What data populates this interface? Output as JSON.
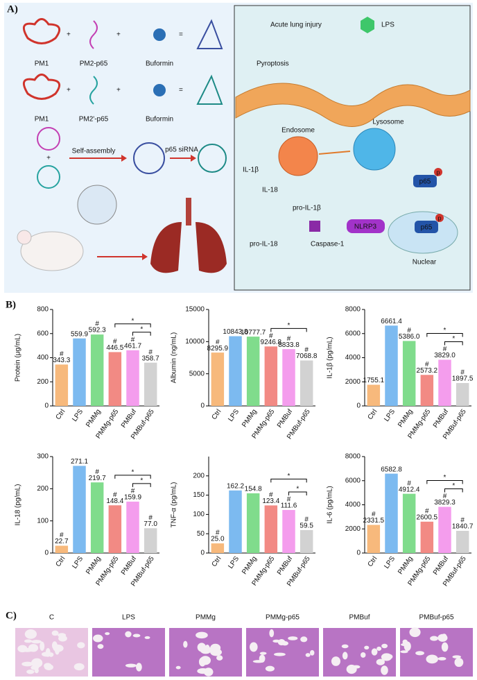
{
  "panel_a": {
    "label": "A)",
    "row1": [
      "PM1",
      "PM2-p65",
      "Buformin"
    ],
    "row2": [
      "PM1",
      "PM2'-p65",
      "Buformin"
    ],
    "assembly": [
      "Self-assembly",
      "p65 siRNA"
    ],
    "pathway": {
      "acute_lung_injury": "Acute lung injury",
      "lps": "LPS",
      "pyroptosis": "Pyroptosis",
      "endosome": "Endosome",
      "lysosome": "Lysosome",
      "il1b": "IL-1β",
      "il18": "IL-18",
      "pro_il1b": "pro-IL-1β",
      "pro_il18": "pro-IL-18",
      "caspase": "Caspase-1",
      "nlrp3": "NLRP3",
      "p65": [
        "p65",
        "p65"
      ],
      "p": [
        "p",
        "p"
      ],
      "nuclear": "Nuclear"
    }
  },
  "panel_b": {
    "label": "B)"
  },
  "chart_data": [
    {
      "type": "bar",
      "ylabel": "Protein (μg/mL)",
      "categories": [
        "Ctrl",
        "LPS",
        "PMMg",
        "PMMg-p65",
        "PMBuf",
        "PMBuf-p65"
      ],
      "values": [
        343.3,
        559.9,
        592.3,
        446.5,
        461.7,
        358.7
      ],
      "value_labels": [
        "343.3",
        "559.9",
        "592.3",
        "446.5",
        "461.7",
        "358.7"
      ],
      "markers": [
        "#",
        null,
        "#",
        "#",
        "#",
        "#"
      ],
      "significance": [
        "*",
        "*"
      ],
      "colors": [
        "#f7b97c",
        "#7cbaf0",
        "#80dc8c",
        "#f28a84",
        "#f49ded",
        "#d2d2d2"
      ],
      "ylim": [
        0,
        800
      ],
      "yticks": [
        0,
        200,
        400,
        600,
        800
      ]
    },
    {
      "type": "bar",
      "ylabel": "Albumin (ng/mL)",
      "categories": [
        "Ctrl",
        "LPS",
        "PMMg",
        "PMMg-p65",
        "PMBuf",
        "PMBuf-p65"
      ],
      "values": [
        8295.9,
        10843.8,
        10777.7,
        9246.8,
        8833.8,
        7068.8
      ],
      "value_labels": [
        "8295.9",
        "10843.8",
        "10777.7",
        "9246.8",
        "8833.8",
        "7068.8"
      ],
      "markers": [
        "#",
        null,
        null,
        "#",
        "#",
        "#"
      ],
      "significance": [
        "*"
      ],
      "colors": [
        "#f7b97c",
        "#7cbaf0",
        "#80dc8c",
        "#f28a84",
        "#f49ded",
        "#d2d2d2"
      ],
      "ylim": [
        0,
        15000
      ],
      "yticks": [
        0,
        5000,
        10000,
        15000
      ]
    },
    {
      "type": "bar",
      "ylabel": "IL-1β (pg/mL)",
      "categories": [
        "Ctrl",
        "LPS",
        "PMMg",
        "PMMg-p65",
        "PMBuf",
        "PMBuf-p65"
      ],
      "values": [
        1755.1,
        6661.4,
        5386.0,
        2573.2,
        3829.0,
        1897.5
      ],
      "value_labels": [
        "1755.1",
        "6661.4",
        "5386.0",
        "2573.2",
        "3829.0",
        "1897.5"
      ],
      "markers": [
        null,
        null,
        "#",
        "#",
        "#",
        "#"
      ],
      "significance": [
        "*",
        "*"
      ],
      "colors": [
        "#f7b97c",
        "#7cbaf0",
        "#80dc8c",
        "#f28a84",
        "#f49ded",
        "#d2d2d2"
      ],
      "ylim": [
        0,
        8000
      ],
      "yticks": [
        0,
        2000,
        4000,
        6000,
        8000
      ]
    },
    {
      "type": "bar",
      "ylabel": "IL-18 (pg/mL)",
      "categories": [
        "Ctrl",
        "LPS",
        "PMMg",
        "PMMg-p65",
        "PMBuf",
        "PMBuf-p65"
      ],
      "values": [
        22.7,
        271.1,
        219.7,
        148.4,
        159.9,
        77.0
      ],
      "value_labels": [
        "22.7",
        "271.1",
        "219.7",
        "148.4",
        "159.9",
        "77.0"
      ],
      "markers": [
        "#",
        null,
        "#",
        "#",
        "#",
        "#"
      ],
      "significance": [
        "*",
        "*"
      ],
      "colors": [
        "#f7b97c",
        "#7cbaf0",
        "#80dc8c",
        "#f28a84",
        "#f49ded",
        "#d2d2d2"
      ],
      "ylim": [
        0,
        300
      ],
      "yticks": [
        0,
        100,
        200,
        300
      ]
    },
    {
      "type": "bar",
      "ylabel": "TNF-α (pg/mL)",
      "categories": [
        "Ctrl",
        "LPS",
        "PMMg",
        "PMMg-p65",
        "PMBuf",
        "PMBuf-p65"
      ],
      "values": [
        25.0,
        162.2,
        154.8,
        123.4,
        111.6,
        59.5
      ],
      "value_labels": [
        "25.0",
        "162.2",
        "154.8",
        "123.4",
        "111.6",
        "59.5"
      ],
      "markers": [
        "#",
        null,
        null,
        "#",
        "#",
        "#"
      ],
      "significance": [
        "*",
        "*"
      ],
      "colors": [
        "#f7b97c",
        "#7cbaf0",
        "#80dc8c",
        "#f28a84",
        "#f49ded",
        "#d2d2d2"
      ],
      "ylim": [
        0,
        250
      ],
      "yticks": [
        0,
        50,
        100,
        150,
        200
      ]
    },
    {
      "type": "bar",
      "ylabel": "IL-6 (pg/mL)",
      "categories": [
        "Ctrl",
        "LPS",
        "PMMg",
        "PMMg-p65",
        "PMBuf",
        "PMBuf-p65"
      ],
      "values": [
        2331.5,
        6582.8,
        4912.4,
        2600.5,
        3829.3,
        1840.7
      ],
      "value_labels": [
        "2331.5",
        "6582.8",
        "4912.4",
        "2600.5",
        "3829.3",
        "1840.7"
      ],
      "markers": [
        "#",
        null,
        "#",
        "#",
        "#",
        "#"
      ],
      "significance": [
        "*",
        "*"
      ],
      "colors": [
        "#f7b97c",
        "#7cbaf0",
        "#80dc8c",
        "#f28a84",
        "#f49ded",
        "#d2d2d2"
      ],
      "ylim": [
        0,
        8000
      ],
      "yticks": [
        0,
        2000,
        4000,
        6000,
        8000
      ]
    }
  ],
  "panel_c": {
    "label": "C)",
    "titles": [
      "C",
      "LPS",
      "PMMg",
      "PMMg-p65",
      "PMBuf",
      "PMBuf-p65"
    ]
  }
}
